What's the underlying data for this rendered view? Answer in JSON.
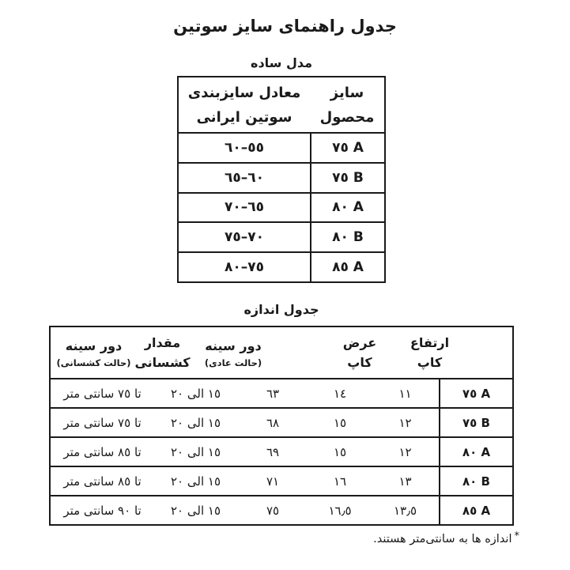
{
  "colors": {
    "ink": "#1a1a1a",
    "background": "#ffffff"
  },
  "title": "جدول راهنمای سایز سوتین",
  "simple_table": {
    "label": "مدل ساده",
    "headers": {
      "size": [
        "سایز",
        "محصول"
      ],
      "equivalent": [
        "معادل سایزبندی",
        "سوتین ایرانی"
      ]
    },
    "rows": [
      {
        "size": "٧٥ A",
        "equivalent": "٥٥–٦٠"
      },
      {
        "size": "٧٥ B",
        "equivalent": "٦٠–٦٥"
      },
      {
        "size": "٨٠ A",
        "equivalent": "٦٥–٧٠"
      },
      {
        "size": "٨٠ B",
        "equivalent": "٧٠–٧٥"
      },
      {
        "size": "٨٥ A",
        "equivalent": "٧٥–٨٠"
      }
    ]
  },
  "measure_table": {
    "label": "جدول اندازه",
    "headers": {
      "size": "",
      "cup_height": [
        "ارتفاع",
        "کاپ"
      ],
      "cup_width": [
        "عرض",
        "کاپ"
      ],
      "chest_normal": [
        "دور سینه",
        "(حالت عادی)"
      ],
      "elasticity": [
        "مقدار",
        "کشسانی"
      ],
      "chest_stretched": [
        "دور سینه",
        "(حالت کشسانی)"
      ]
    },
    "rows": [
      {
        "size": "٧٥ A",
        "cup_height": "١١",
        "cup_width": "١٤",
        "chest_normal": "٦٣",
        "elasticity": "١٥ الی ٢٠",
        "chest_stretched": "تا ٧٥ سانتی متر"
      },
      {
        "size": "٧٥ B",
        "cup_height": "١٢",
        "cup_width": "١٥",
        "chest_normal": "٦٨",
        "elasticity": "١٥ الی ٢٠",
        "chest_stretched": "تا ٧٥ سانتی متر"
      },
      {
        "size": "٨٠ A",
        "cup_height": "١٢",
        "cup_width": "١٥",
        "chest_normal": "٦٩",
        "elasticity": "١٥ الی ٢٠",
        "chest_stretched": "تا ٨٥ سانتی متر"
      },
      {
        "size": "٨٠ B",
        "cup_height": "١٣",
        "cup_width": "١٦",
        "chest_normal": "٧١",
        "elasticity": "١٥ الی ٢٠",
        "chest_stretched": "تا ٨٥ سانتی متر"
      },
      {
        "size": "٨٥ A",
        "cup_height": "١٣٫٥",
        "cup_width": "١٦٫٥",
        "chest_normal": "٧٥",
        "elasticity": "١٥ الی ٢٠",
        "chest_stretched": "تا ٩٠ سانتی متر"
      }
    ]
  },
  "footnote": {
    "star": "*",
    "text": "اندازه ها به سانتی‌متر هستند."
  }
}
